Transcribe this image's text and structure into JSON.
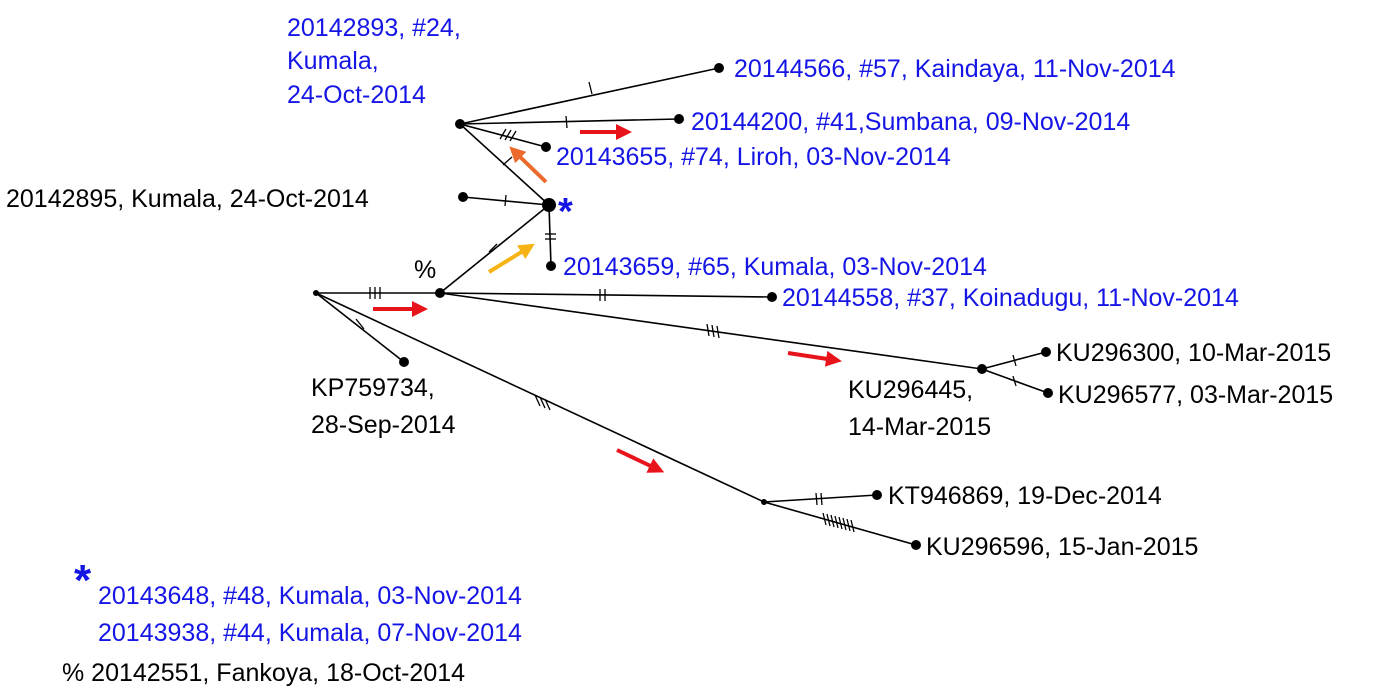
{
  "colors": {
    "sample_label": "#1515e6",
    "reference_label": "#000000",
    "arrow_red": "#e8141b",
    "arrow_orange": "#ec6a2c",
    "arrow_yellow": "#f5b316",
    "marker_star": "#1515e6"
  },
  "labels": {
    "n20142893_l1": "20142893, #24,",
    "n20142893_l2": "Kumala,",
    "n20142893_l3": "24-Oct-2014",
    "n20144566": "20144566, #57, Kaindaya, 11-Nov-2014",
    "n20144200": "20144200, #41,Sumbana, 09-Nov-2014",
    "n20143655": "20143655, #74, Liroh, 03-Nov-2014",
    "n20142895": "20142895, Kumala, 24-Oct-2014",
    "n20143659": "20143659, #65, Kumala, 03-Nov-2014",
    "n20144558": "20144558, #37, Koinadugu, 11-Nov-2014",
    "kp759734_l1": "KP759734,",
    "kp759734_l2": "28-Sep-2014",
    "ku296445_l1": "KU296445,",
    "ku296445_l2": "14-Mar-2015",
    "ku296300": "KU296300, 10-Mar-2015",
    "ku296577": "KU296577, 03-Mar-2015",
    "kt946869": "KT946869, 19-Dec-2014",
    "ku296596": "KU296596, 15-Jan-2015",
    "percent_marker": "%",
    "star_marker": "*"
  },
  "legend": {
    "star_symbol": "*",
    "star_line1": "20143648, #48, Kumala, 03-Nov-2014",
    "star_line2": "20143938, #44, Kumala, 07-Nov-2014",
    "percent_line": "% 20142551, Fankoya, 18-Oct-2014"
  }
}
